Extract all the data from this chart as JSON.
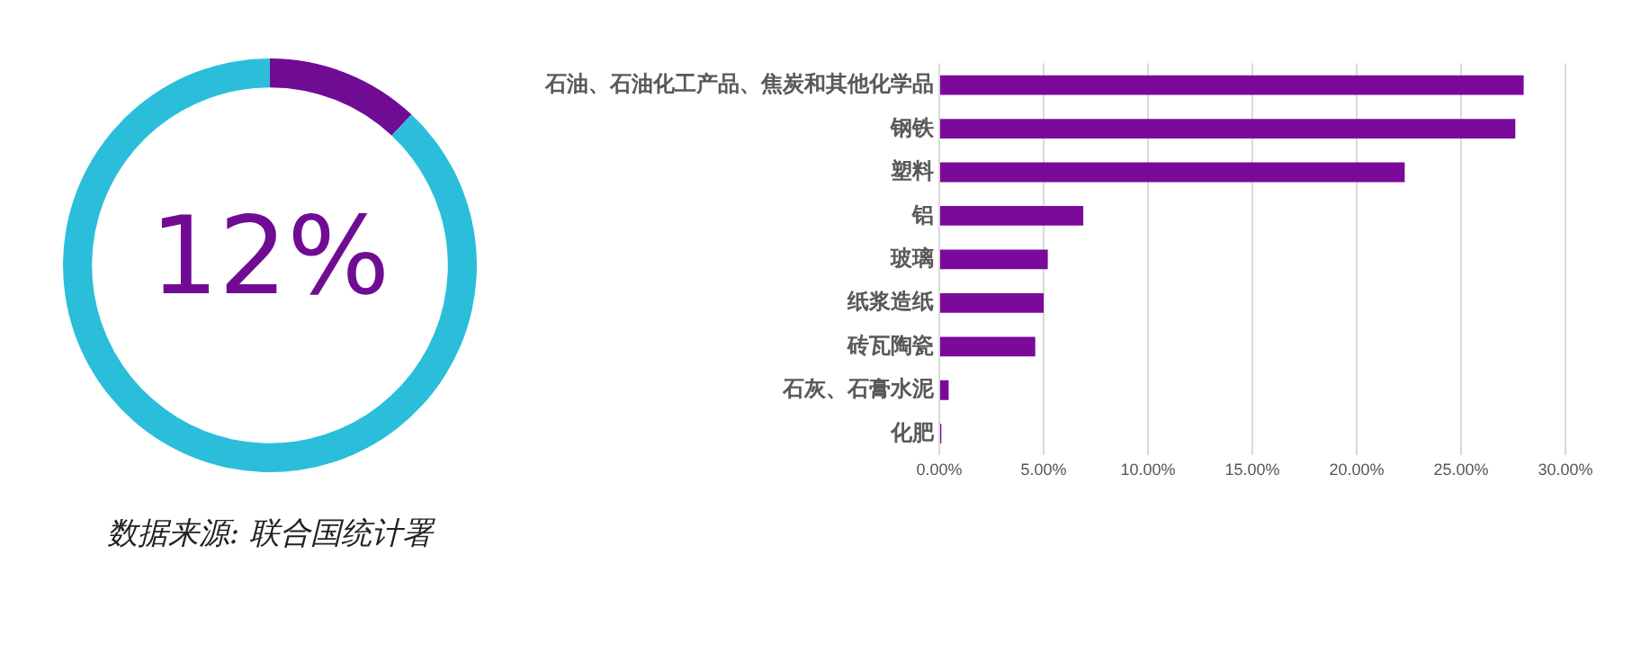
{
  "chart_data": [
    {
      "type": "donut",
      "categories": [
        null,
        null
      ],
      "values": [
        12,
        88
      ],
      "colors": [
        "#700c94",
        "#2bbedb"
      ],
      "value_labels": [
        "12%",
        null
      ],
      "legend": false,
      "annotations": [
        "数据来源: 联合国统计署"
      ]
    },
    {
      "type": "bar",
      "orientation": "horizontal",
      "categories": [
        "石油、石油化工产品、焦炭和其他化学品",
        "钢铁",
        "塑料",
        "铝",
        "玻璃",
        "纸浆造纸",
        "砖瓦陶瓷",
        "石灰、石膏水泥",
        "化肥"
      ],
      "values": [
        28.0,
        27.6,
        22.3,
        6.9,
        5.2,
        5.0,
        4.6,
        0.45,
        0.1
      ],
      "color": "#7b0a9b",
      "xlim": [
        0,
        30
      ],
      "xticks": [
        {
          "value": 0,
          "label": "0.00%"
        },
        {
          "value": 5,
          "label": "5.00%"
        },
        {
          "value": 10,
          "label": "10.00%"
        },
        {
          "value": 15,
          "label": "15.00%"
        },
        {
          "value": 20,
          "label": "20.00%"
        },
        {
          "value": 25,
          "label": "25.00%"
        },
        {
          "value": 30,
          "label": "30.00%"
        }
      ],
      "grid": "x",
      "legend": false
    }
  ]
}
